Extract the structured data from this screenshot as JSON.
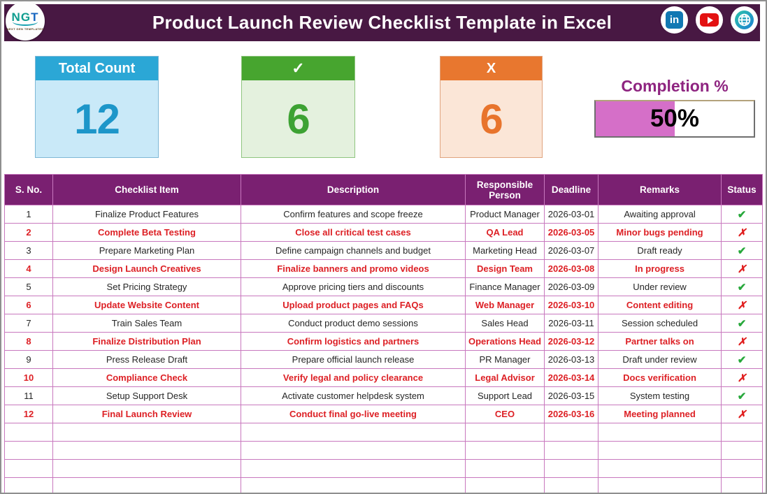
{
  "header": {
    "logo": {
      "letters": [
        "N",
        "G",
        "T"
      ],
      "tagline": "NEXT GEN TEMPLATES"
    },
    "title": "Product Launch Review Checklist Template in Excel",
    "social_icons": {
      "linkedin_glyph": "in"
    }
  },
  "summary": {
    "total": {
      "label": "Total Count",
      "value": "12"
    },
    "done": {
      "label": "✓",
      "value": "6"
    },
    "pending": {
      "label": "X",
      "value": "6"
    },
    "completion": {
      "label": "Completion %",
      "value": "50%",
      "percent": 50,
      "fill_color": "#d56fc8"
    }
  },
  "table": {
    "columns": [
      "S. No.",
      "Checklist Item",
      "Description",
      "Responsible Person",
      "Deadline",
      "Remarks",
      "Status"
    ],
    "rows": [
      {
        "sno": "1",
        "item": "Finalize Product Features",
        "description": "Confirm features and scope freeze",
        "person": "Product Manager",
        "deadline": "2026-03-01",
        "remarks": "Awaiting approval",
        "status": "✔"
      },
      {
        "sno": "2",
        "item": "Complete Beta Testing",
        "description": "Close all critical test cases",
        "person": "QA Lead",
        "deadline": "2026-03-05",
        "remarks": "Minor bugs pending",
        "status": "✗"
      },
      {
        "sno": "3",
        "item": "Prepare Marketing Plan",
        "description": "Define campaign channels and budget",
        "person": "Marketing Head",
        "deadline": "2026-03-07",
        "remarks": "Draft ready",
        "status": "✔"
      },
      {
        "sno": "4",
        "item": "Design Launch Creatives",
        "description": "Finalize banners and promo videos",
        "person": "Design Team",
        "deadline": "2026-03-08",
        "remarks": "In progress",
        "status": "✗"
      },
      {
        "sno": "5",
        "item": "Set Pricing Strategy",
        "description": "Approve pricing tiers and discounts",
        "person": "Finance Manager",
        "deadline": "2026-03-09",
        "remarks": "Under review",
        "status": "✔"
      },
      {
        "sno": "6",
        "item": "Update Website Content",
        "description": "Upload product pages and FAQs",
        "person": "Web Manager",
        "deadline": "2026-03-10",
        "remarks": "Content editing",
        "status": "✗"
      },
      {
        "sno": "7",
        "item": "Train Sales Team",
        "description": "Conduct product demo sessions",
        "person": "Sales Head",
        "deadline": "2026-03-11",
        "remarks": "Session scheduled",
        "status": "✔"
      },
      {
        "sno": "8",
        "item": "Finalize Distribution Plan",
        "description": "Confirm logistics and partners",
        "person": "Operations Head",
        "deadline": "2026-03-12",
        "remarks": "Partner talks on",
        "status": "✗"
      },
      {
        "sno": "9",
        "item": "Press Release Draft",
        "description": "Prepare official launch release",
        "person": "PR Manager",
        "deadline": "2026-03-13",
        "remarks": "Draft under review",
        "status": "✔"
      },
      {
        "sno": "10",
        "item": "Compliance Check",
        "description": "Verify legal and policy clearance",
        "person": "Legal Advisor",
        "deadline": "2026-03-14",
        "remarks": "Docs verification",
        "status": "✗"
      },
      {
        "sno": "11",
        "item": "Setup Support Desk",
        "description": "Activate customer helpdesk system",
        "person": "Support Lead",
        "deadline": "2026-03-15",
        "remarks": "System testing",
        "status": "✔"
      },
      {
        "sno": "12",
        "item": "Final Launch Review",
        "description": "Conduct final go-live meeting",
        "person": "CEO",
        "deadline": "2026-03-16",
        "remarks": "Meeting planned",
        "status": "✗"
      }
    ]
  },
  "colors": {
    "header_bar": "#481843",
    "table_header": "#7a2071",
    "grid_line": "#c878be",
    "total_accent": "#2ba7d6",
    "done_accent": "#47a52f",
    "pending_accent": "#e8772f",
    "completion_accent": "#8e2480",
    "flagged_text": "#dd2025",
    "check_green": "#27a83b",
    "cross_red": "#e01e1e"
  }
}
